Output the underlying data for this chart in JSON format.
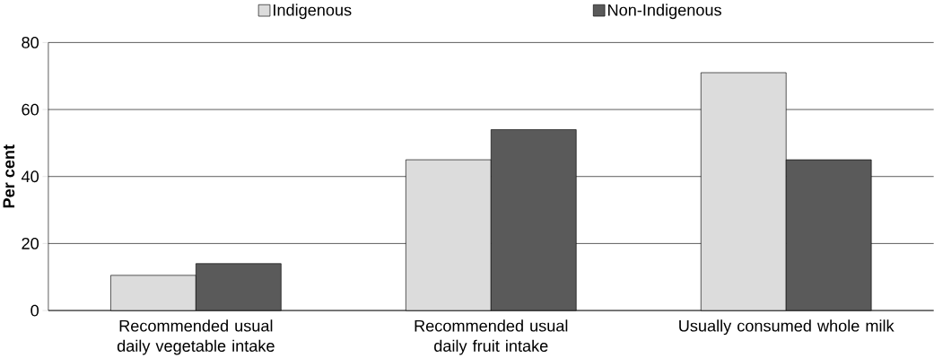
{
  "chart_data": {
    "type": "bar",
    "ylabel": "Per cent",
    "categories": [
      "Recommended usual daily vegetable intake",
      "Recommended usual daily fruit intake",
      "Usually consumed whole milk"
    ],
    "series": [
      {
        "name": "Indigenous",
        "color": "#dcdcdc",
        "values": [
          10.5,
          45,
          71
        ]
      },
      {
        "name": "Non-Indigenous",
        "color": "#5a5a5a",
        "values": [
          14,
          54,
          45
        ]
      }
    ],
    "ylim": [
      0,
      80
    ],
    "yticks": [
      0,
      20,
      40,
      60,
      80
    ],
    "grid": "y",
    "legend": "top"
  }
}
